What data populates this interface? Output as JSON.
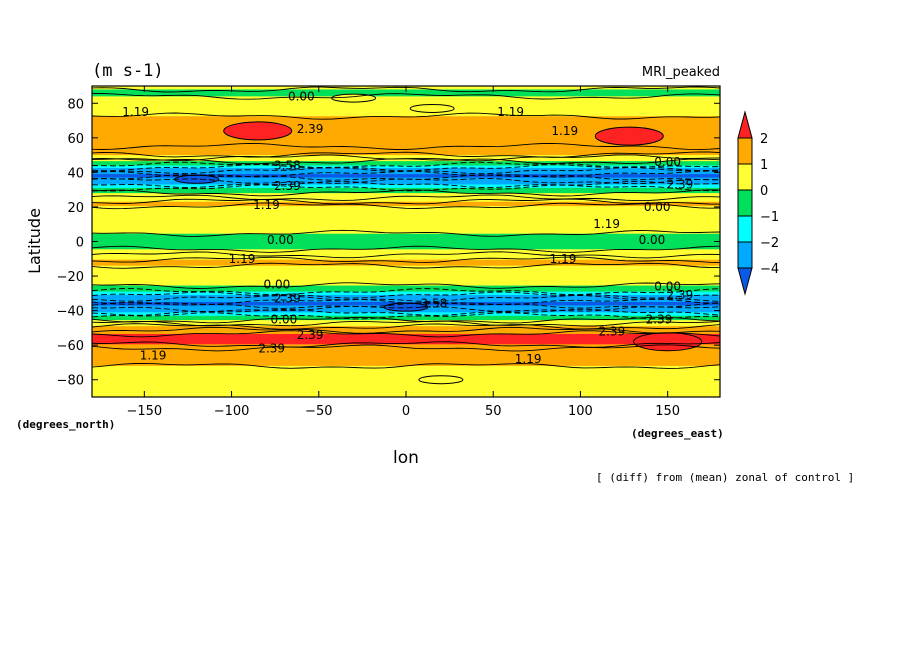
{
  "chart_data": {
    "type": "heatmap",
    "title_left": "(m s-1)",
    "title_right": "MRI_peaked",
    "xlabel": "lon",
    "ylabel": "Latitude",
    "x_unit": "(degrees_east)",
    "y_unit": "(degrees_north)",
    "footer": "[ (diff) from (mean) zonal of control ]",
    "xlim": [
      -180,
      180
    ],
    "ylim": [
      -90,
      90
    ],
    "x_ticks": [
      -150,
      -100,
      -50,
      0,
      50,
      100,
      150
    ],
    "x_tick_labels": [
      "−150",
      "−100",
      "−50",
      "0",
      "50",
      "100",
      "150"
    ],
    "y_ticks": [
      -80,
      -60,
      -40,
      -20,
      0,
      20,
      40,
      60,
      80
    ],
    "y_tick_labels": [
      "−80",
      "−60",
      "−40",
      "−20",
      "0",
      "20",
      "40",
      "60",
      "80"
    ],
    "colorbar": {
      "levels": [
        -4,
        -2,
        -1,
        0,
        1,
        2
      ],
      "level_labels": [
        "−4",
        "−2",
        "−1",
        "0",
        "1",
        "2"
      ],
      "colors": [
        "#0a5ae8",
        "#00aaff",
        "#00ffff",
        "#00e05a",
        "#ffff33",
        "#ffaa00",
        "#ff2222"
      ]
    },
    "zonal_profile": {
      "lat": [
        -90,
        -86,
        -80,
        -70,
        -62,
        -58,
        -55,
        -51,
        -47,
        -44,
        -40,
        -36,
        -32,
        -28,
        -24,
        -18,
        -12,
        -7,
        -3,
        -1,
        0,
        1,
        3,
        7,
        12,
        18,
        22,
        27,
        30,
        34,
        38,
        42,
        45,
        48,
        52,
        58,
        64,
        70,
        76,
        82,
        86,
        90
      ],
      "value": [
        0.1,
        0.6,
        0.6,
        1.1,
        1.4,
        2.4,
        2.4,
        1.4,
        0.5,
        -0.5,
        -2.5,
        -4.5,
        -2.5,
        -0.5,
        0.3,
        0.6,
        1.2,
        0.5,
        -0.3,
        -0.5,
        -0.8,
        -0.5,
        -0.3,
        0.4,
        0.6,
        0.6,
        1.2,
        0.3,
        -0.5,
        -2.5,
        -4.5,
        -2.5,
        -0.5,
        0.5,
        1.4,
        1.6,
        1.5,
        1.3,
        0.6,
        0.2,
        -0.2,
        0.2
      ]
    },
    "features": [
      {
        "lon": -85,
        "lat": 64,
        "value": 2.4
      },
      {
        "lon": 128,
        "lat": 61,
        "value": 2.4
      },
      {
        "lon": -30,
        "lat": 83,
        "value": 0.0
      },
      {
        "lon": 15,
        "lat": 77,
        "value": 0.0
      },
      {
        "lon": -120,
        "lat": 36,
        "value": -4.5
      },
      {
        "lon": 0,
        "lat": -38,
        "value": -4.5
      },
      {
        "lon": 150,
        "lat": -58,
        "value": 2.4
      },
      {
        "lon": 20,
        "lat": -80,
        "value": 0.0
      }
    ],
    "contour_labels": [
      {
        "text": "0.00",
        "lon": -60,
        "lat": 84
      },
      {
        "text": "1.19",
        "lon": -155,
        "lat": 75
      },
      {
        "text": "1.19",
        "lon": 60,
        "lat": 75
      },
      {
        "text": "2.39",
        "lon": -55,
        "lat": 65
      },
      {
        "text": "1.19",
        "lon": 91,
        "lat": 64
      },
      {
        "text": "3.58",
        "lon": -68,
        "lat": 44
      },
      {
        "text": "2.39",
        "lon": -68,
        "lat": 32
      },
      {
        "text": "1.19",
        "lon": -80,
        "lat": 21
      },
      {
        "text": "0.00",
        "lon": 150,
        "lat": 46
      },
      {
        "text": "2.39",
        "lon": 157,
        "lat": 33
      },
      {
        "text": "0.00",
        "lon": 144,
        "lat": 20
      },
      {
        "text": "1.19",
        "lon": 115,
        "lat": 10
      },
      {
        "text": "0.00",
        "lon": -72,
        "lat": 1
      },
      {
        "text": "0.00",
        "lon": 141,
        "lat": 1
      },
      {
        "text": "1.19",
        "lon": -94,
        "lat": -10
      },
      {
        "text": "1.19",
        "lon": 90,
        "lat": -10
      },
      {
        "text": "0.00",
        "lon": -74,
        "lat": -25
      },
      {
        "text": "2.39",
        "lon": -68,
        "lat": -33
      },
      {
        "text": "3.58",
        "lon": 16,
        "lat": -36
      },
      {
        "text": "0.00",
        "lon": 150,
        "lat": -26
      },
      {
        "text": "2.39",
        "lon": 157,
        "lat": -31
      },
      {
        "text": "0.00",
        "lon": -70,
        "lat": -45
      },
      {
        "text": "2.39",
        "lon": 145,
        "lat": -45
      },
      {
        "text": "2.39",
        "lon": -55,
        "lat": -54
      },
      {
        "text": "2.39",
        "lon": -77,
        "lat": -62
      },
      {
        "text": "2.39",
        "lon": 118,
        "lat": -52
      },
      {
        "text": "1.19",
        "lon": -145,
        "lat": -66
      },
      {
        "text": "1.19",
        "lon": 70,
        "lat": -68
      }
    ]
  }
}
